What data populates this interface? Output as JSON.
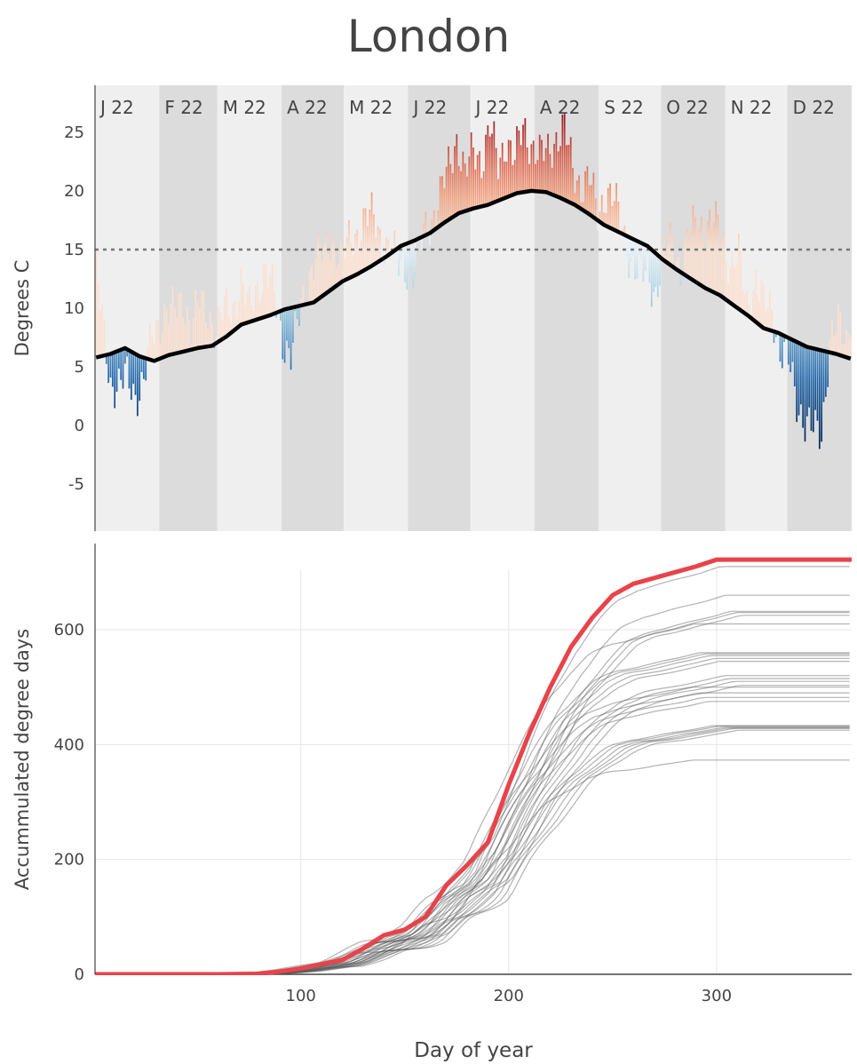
{
  "title": "London",
  "chart_data": [
    {
      "type": "bar",
      "ylabel": "Degrees C",
      "xlim": [
        1,
        365
      ],
      "ylim": [
        -9,
        29
      ],
      "yticks": [
        25,
        20,
        15,
        10,
        5,
        0,
        -5
      ],
      "threshold": 15,
      "month_bands": [
        {
          "label": "J 22",
          "start": 1,
          "end": 31,
          "shade": "light"
        },
        {
          "label": "F 22",
          "start": 32,
          "end": 59,
          "shade": "dark"
        },
        {
          "label": "M 22",
          "start": 60,
          "end": 90,
          "shade": "light"
        },
        {
          "label": "A 22",
          "start": 91,
          "end": 120,
          "shade": "dark"
        },
        {
          "label": "M 22",
          "start": 121,
          "end": 151,
          "shade": "light"
        },
        {
          "label": "J 22",
          "start": 152,
          "end": 181,
          "shade": "dark"
        },
        {
          "label": "J 22",
          "start": 182,
          "end": 212,
          "shade": "light"
        },
        {
          "label": "A 22",
          "start": 213,
          "end": 243,
          "shade": "dark"
        },
        {
          "label": "S 22",
          "start": 244,
          "end": 273,
          "shade": "light"
        },
        {
          "label": "O 22",
          "start": 274,
          "end": 304,
          "shade": "dark"
        },
        {
          "label": "N 22",
          "start": 305,
          "end": 334,
          "shade": "light"
        },
        {
          "label": "D 22",
          "start": 335,
          "end": 365,
          "shade": "dark"
        }
      ],
      "normal_line": {
        "x": [
          1,
          8,
          15,
          22,
          29,
          36,
          43,
          50,
          57,
          64,
          71,
          78,
          85,
          92,
          99,
          106,
          113,
          120,
          127,
          134,
          141,
          148,
          155,
          162,
          169,
          176,
          183,
          190,
          197,
          204,
          211,
          218,
          225,
          232,
          239,
          246,
          253,
          260,
          267,
          274,
          281,
          288,
          295,
          302,
          309,
          316,
          323,
          330,
          337,
          344,
          351,
          358,
          365
        ],
        "y": [
          5.8,
          6.1,
          6.6,
          5.9,
          5.5,
          6.0,
          6.3,
          6.6,
          6.8,
          7.6,
          8.6,
          9.0,
          9.4,
          9.9,
          10.2,
          10.5,
          11.4,
          12.3,
          12.9,
          13.6,
          14.4,
          15.3,
          15.8,
          16.4,
          17.3,
          18.1,
          18.5,
          18.8,
          19.3,
          19.8,
          20.0,
          19.9,
          19.4,
          18.8,
          18.0,
          17.1,
          16.5,
          15.9,
          15.3,
          14.2,
          13.3,
          12.5,
          11.7,
          11.1,
          10.2,
          9.3,
          8.3,
          7.9,
          7.3,
          6.7,
          6.4,
          6.1,
          5.7
        ]
      },
      "anomaly_anchors": {
        "x": [
          1,
          4,
          8,
          12,
          16,
          20,
          24,
          28,
          31,
          35,
          39,
          43,
          47,
          51,
          55,
          59,
          63,
          67,
          71,
          75,
          79,
          83,
          87,
          91,
          95,
          99,
          103,
          107,
          111,
          115,
          119,
          123,
          127,
          131,
          135,
          139,
          143,
          147,
          151,
          155,
          159,
          163,
          167,
          171,
          175,
          179,
          183,
          187,
          191,
          195,
          199,
          203,
          207,
          211,
          215,
          219,
          223,
          227,
          231,
          235,
          239,
          243,
          247,
          251,
          255,
          259,
          263,
          267,
          271,
          275,
          279,
          283,
          287,
          291,
          295,
          299,
          303,
          307,
          311,
          315,
          319,
          323,
          327,
          331,
          335,
          339,
          343,
          347,
          351,
          355,
          359,
          363,
          365
        ],
        "y": [
          7.5,
          3,
          -2.5,
          -3,
          -2.5,
          -3.5,
          -2,
          2,
          3,
          4,
          3.5,
          4.5,
          2,
          4,
          3,
          1,
          2.5,
          2,
          3.5,
          1,
          3,
          4,
          1.5,
          -2.5,
          -4,
          -1,
          2,
          4,
          3.5,
          4.5,
          2,
          3,
          3.5,
          4.5,
          4,
          1.5,
          0.5,
          -1.5,
          -2,
          -3,
          0.5,
          1,
          2.5,
          4.5,
          6.5,
          3,
          5,
          4,
          6.5,
          3,
          5,
          3,
          5.5,
          4,
          3,
          3.5,
          5,
          6,
          3,
          2,
          3,
          0.5,
          3,
          2.5,
          0.5,
          -2,
          -3,
          -2,
          -3.5,
          0.5,
          2.5,
          0,
          3.5,
          5.5,
          5,
          6,
          5.5,
          3,
          4.5,
          1,
          3.5,
          2,
          2,
          -1.5,
          -2,
          -5,
          -6.5,
          -7,
          -7,
          1,
          2.5,
          1.5,
          4
        ]
      }
    },
    {
      "type": "line",
      "xlabel": "Day of year",
      "ylabel": "Accummulated degree days",
      "xlim": [
        1,
        365
      ],
      "ylim": [
        0,
        750
      ],
      "xticks": [
        100,
        200,
        300
      ],
      "yticks": [
        0,
        200,
        400,
        600
      ],
      "grid": true,
      "highlight_color": "#e8434a",
      "highlight": {
        "x": [
          1,
          60,
          80,
          90,
          100,
          110,
          120,
          130,
          140,
          150,
          160,
          170,
          180,
          190,
          200,
          210,
          220,
          230,
          240,
          250,
          260,
          270,
          280,
          290,
          300,
          310,
          320,
          330,
          340,
          350,
          365
        ],
        "y": [
          0,
          0,
          1,
          5,
          10,
          18,
          25,
          45,
          68,
          78,
          100,
          155,
          190,
          230,
          330,
          420,
          500,
          570,
          620,
          660,
          680,
          690,
          700,
          710,
          722,
          722,
          722,
          722,
          722,
          722,
          722
        ]
      },
      "history_final_values": [
        373,
        425,
        428,
        429,
        430,
        432,
        433,
        475,
        482,
        490,
        500,
        503,
        510,
        515,
        520,
        545,
        550,
        555,
        558,
        560,
        610,
        625,
        630,
        632,
        660,
        710
      ]
    }
  ]
}
